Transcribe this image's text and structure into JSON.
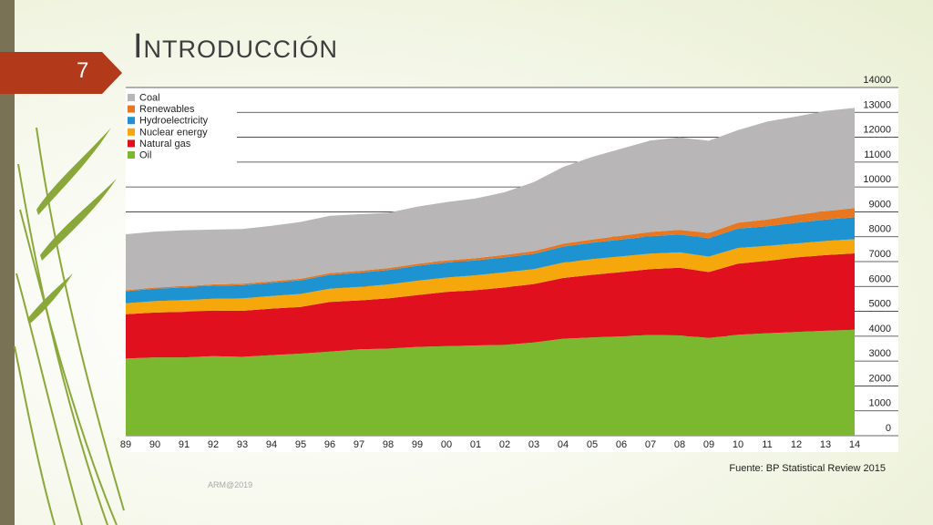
{
  "slide": {
    "title": "Introducción",
    "page_number": "7",
    "source": "Fuente: BP Statistical Review 2015",
    "footer": "ARM@2019"
  },
  "colors": {
    "accent": "#b23a1b",
    "left_bar": "#7a7254",
    "leaves": "#8aa83a"
  },
  "chart_data": {
    "type": "area",
    "stacked": true,
    "categories": [
      "89",
      "90",
      "91",
      "92",
      "93",
      "94",
      "95",
      "96",
      "97",
      "98",
      "99",
      "00",
      "01",
      "02",
      "03",
      "04",
      "05",
      "06",
      "07",
      "08",
      "09",
      "10",
      "11",
      "12",
      "13",
      "14"
    ],
    "ylim": [
      0,
      14000
    ],
    "yticks": [
      "0",
      "1000",
      "2000",
      "3000",
      "4000",
      "5000",
      "6000",
      "7000",
      "8000",
      "9000",
      "10000",
      "11000",
      "12000",
      "13000",
      "14000"
    ],
    "y_axis_position": "right",
    "grid": "horizontal",
    "legend_position": "top-left",
    "title": "",
    "xlabel": "",
    "ylabel": "",
    "series": [
      {
        "name": "Oil",
        "color": "#7cb82f",
        "values": [
          3100,
          3150,
          3150,
          3200,
          3170,
          3240,
          3300,
          3380,
          3470,
          3500,
          3570,
          3600,
          3630,
          3650,
          3750,
          3900,
          3950,
          4000,
          4050,
          4030,
          3930,
          4060,
          4120,
          4170,
          4220,
          4260
        ]
      },
      {
        "name": "Natural gas",
        "color": "#e1101f",
        "values": [
          1780,
          1800,
          1830,
          1830,
          1850,
          1870,
          1880,
          2000,
          1970,
          2020,
          2080,
          2180,
          2220,
          2310,
          2350,
          2440,
          2520,
          2580,
          2650,
          2720,
          2650,
          2860,
          2910,
          3000,
          3040,
          3070
        ]
      },
      {
        "name": "Nuclear energy",
        "color": "#f5a70b",
        "values": [
          440,
          460,
          470,
          480,
          500,
          510,
          520,
          530,
          540,
          560,
          580,
          580,
          600,
          610,
          600,
          620,
          630,
          630,
          620,
          620,
          620,
          630,
          600,
          560,
          570,
          570
        ]
      },
      {
        "name": "Hydroelectricity",
        "color": "#1e93d2",
        "values": [
          490,
          500,
          510,
          520,
          530,
          530,
          550,
          560,
          570,
          580,
          600,
          600,
          600,
          600,
          610,
          640,
          660,
          680,
          700,
          720,
          740,
          780,
          790,
          830,
          860,
          880
        ]
      },
      {
        "name": "Renewables",
        "color": "#e87722",
        "values": [
          40,
          45,
          50,
          55,
          60,
          60,
          65,
          70,
          75,
          80,
          80,
          85,
          90,
          100,
          110,
          120,
          130,
          150,
          170,
          190,
          210,
          240,
          270,
          320,
          340,
          370
        ]
      },
      {
        "name": "Coal",
        "color": "#b8b6b7",
        "values": [
          2250,
          2250,
          2250,
          2200,
          2200,
          2230,
          2280,
          2300,
          2280,
          2220,
          2300,
          2350,
          2400,
          2520,
          2780,
          3080,
          3320,
          3500,
          3680,
          3710,
          3710,
          3720,
          3940,
          3950,
          4030,
          4030
        ]
      }
    ]
  }
}
